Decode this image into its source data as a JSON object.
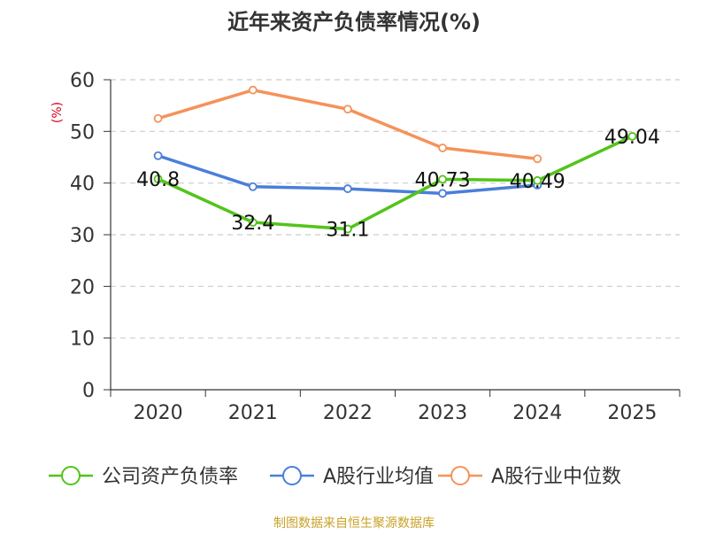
{
  "chart_data": {
    "type": "line",
    "title": "近年来资产负债率情况(%)",
    "ylabel": "(%)",
    "xlabel": "",
    "categories": [
      "2020",
      "2021",
      "2022",
      "2023",
      "2024",
      "2025"
    ],
    "ylim": [
      0,
      60
    ],
    "yticks": [
      0,
      10,
      20,
      30,
      40,
      50,
      60
    ],
    "grid": true,
    "legend_position": "bottom",
    "series": [
      {
        "name": "公司资产负债率",
        "color": "#52c41a",
        "values": [
          40.8,
          32.4,
          31.1,
          40.73,
          40.49,
          49.04
        ],
        "labels": [
          "40.8",
          "32.4",
          "31.1",
          "40.73",
          "40.49",
          "49.04"
        ]
      },
      {
        "name": "A股行业均值",
        "color": "#4a7fd9",
        "values": [
          45.3,
          39.3,
          38.9,
          38.0,
          39.6,
          null
        ],
        "labels": null
      },
      {
        "name": "A股行业中位数",
        "color": "#f5925a",
        "values": [
          52.5,
          58.0,
          54.3,
          46.8,
          44.7,
          null
        ],
        "labels": null
      }
    ],
    "source": "制图数据来自恒生聚源数据库",
    "colors": {
      "title": "#333333",
      "axis": "#333333",
      "grid": "#cccccc",
      "ylabel": "#d9001b",
      "source": "#c9a227"
    }
  }
}
